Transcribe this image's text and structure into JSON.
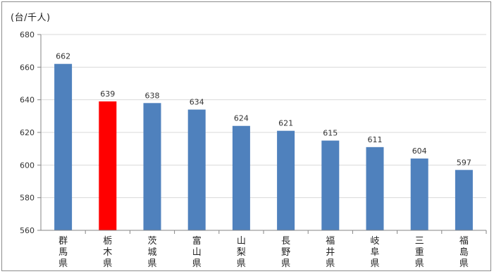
{
  "chart_data": {
    "type": "bar",
    "unit_label": "(台/千人)",
    "categories": [
      "群馬県",
      "栃木県",
      "茨城県",
      "富山県",
      "山梨県",
      "長野県",
      "福井県",
      "岐阜県",
      "三重県",
      "福島県"
    ],
    "values": [
      662,
      639,
      638,
      634,
      624,
      621,
      615,
      611,
      604,
      597
    ],
    "ylim": [
      560,
      680
    ],
    "yticks": [
      560,
      580,
      600,
      620,
      640,
      660,
      680
    ],
    "grid": true,
    "legend": "none",
    "title": "",
    "xlabel": "",
    "ylabel": "",
    "colors": {
      "bar": "#4f81bd",
      "highlight": "#ff0000",
      "grid": "#d9d9d9",
      "axis": "#868686"
    },
    "highlight_category": "栃木県"
  }
}
